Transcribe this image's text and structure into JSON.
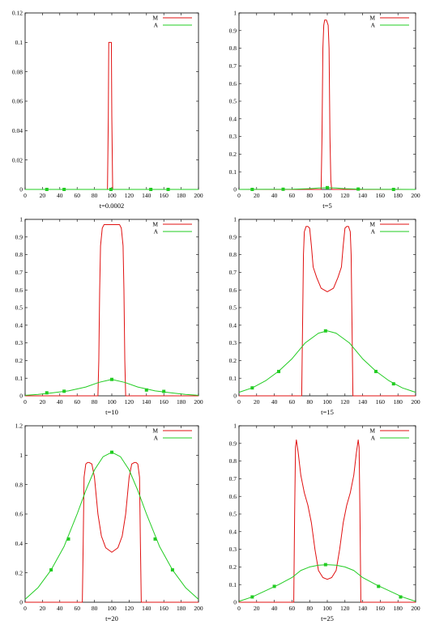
{
  "colors": {
    "M": "#e01010",
    "A": "#22cc22",
    "axis": "#000000"
  },
  "chart_data": [
    {
      "type": "line",
      "xlabel": "t=0.0002",
      "xlim": [
        0,
        200
      ],
      "ylim": [
        0,
        0.12
      ],
      "x_ticks": [
        0,
        20,
        40,
        60,
        80,
        100,
        120,
        140,
        160,
        180,
        200
      ],
      "y_ticks": [
        0,
        0.02,
        0.04,
        0.06,
        0.08,
        0.1,
        0.12
      ],
      "y_tick_labels": [
        "0",
        "0.02",
        "0.04",
        "0.06",
        "0.08",
        "0.1",
        "0.12"
      ],
      "legend": {
        "position": "top-right",
        "entries": [
          "M",
          "A"
        ]
      },
      "series": [
        {
          "name": "M",
          "x": [
            0,
            95,
            96,
            96.5,
            99.5,
            100,
            101,
            200
          ],
          "y": [
            0,
            0,
            0.05,
            0.1,
            0.1,
            0.05,
            0,
            0
          ]
        },
        {
          "name": "A",
          "x": [
            0,
            200
          ],
          "y": [
            0,
            0
          ],
          "markers_x": [
            25,
            45,
            99,
            145,
            165
          ],
          "markers_y": [
            0,
            0,
            0,
            0,
            0
          ]
        }
      ]
    },
    {
      "type": "line",
      "xlabel": "t=5",
      "xlim": [
        0,
        200
      ],
      "ylim": [
        0,
        1
      ],
      "x_ticks": [
        0,
        20,
        40,
        60,
        80,
        100,
        120,
        140,
        160,
        180,
        200
      ],
      "y_ticks": [
        0,
        0.1,
        0.2,
        0.3,
        0.4,
        0.5,
        0.6,
        0.7,
        0.8,
        0.9,
        1
      ],
      "y_tick_labels": [
        "0",
        "0.1",
        "0.2",
        "0.3",
        "0.4",
        "0.5",
        "0.6",
        "0.7",
        "0.8",
        "0.9",
        "1"
      ],
      "legend": {
        "position": "top-right",
        "entries": [
          "M",
          "A"
        ]
      },
      "series": [
        {
          "name": "M",
          "x": [
            0,
            93,
            94,
            95,
            96,
            97,
            99,
            101,
            102,
            103,
            104,
            105,
            200
          ],
          "y": [
            0,
            0,
            0.3,
            0.8,
            0.93,
            0.96,
            0.96,
            0.93,
            0.8,
            0.3,
            0.05,
            0,
            0
          ]
        },
        {
          "name": "A",
          "x": [
            0,
            60,
            80,
            90,
            100,
            110,
            120,
            140,
            200
          ],
          "y": [
            0,
            0.001,
            0.004,
            0.008,
            0.01,
            0.008,
            0.004,
            0.001,
            0
          ],
          "markers_x": [
            15,
            50,
            100,
            135,
            175
          ],
          "markers_y": [
            0,
            0.001,
            0.01,
            0.002,
            0
          ]
        }
      ]
    },
    {
      "type": "line",
      "xlabel": "t=10",
      "xlim": [
        0,
        200
      ],
      "ylim": [
        0,
        1
      ],
      "x_ticks": [
        0,
        20,
        40,
        60,
        80,
        100,
        120,
        140,
        160,
        180,
        200
      ],
      "y_ticks": [
        0,
        0.1,
        0.2,
        0.3,
        0.4,
        0.5,
        0.6,
        0.7,
        0.8,
        0.9,
        1
      ],
      "y_tick_labels": [
        "0",
        "0.1",
        "0.2",
        "0.3",
        "0.4",
        "0.5",
        "0.6",
        "0.7",
        "0.8",
        "0.9",
        "1"
      ],
      "legend": {
        "position": "top-right",
        "entries": [
          "M",
          "A"
        ]
      },
      "series": [
        {
          "name": "M",
          "x": [
            0,
            84,
            85,
            86,
            87,
            89,
            91,
            100,
            109,
            111,
            113,
            114,
            115,
            116,
            200
          ],
          "y": [
            0,
            0,
            0.2,
            0.6,
            0.85,
            0.95,
            0.97,
            0.97,
            0.97,
            0.95,
            0.85,
            0.6,
            0.2,
            0,
            0
          ]
        },
        {
          "name": "A",
          "x": [
            0,
            15,
            30,
            50,
            70,
            85,
            100,
            115,
            130,
            150,
            170,
            185,
            200
          ],
          "y": [
            0.003,
            0.008,
            0.016,
            0.028,
            0.05,
            0.076,
            0.093,
            0.076,
            0.05,
            0.028,
            0.016,
            0.008,
            0.003
          ],
          "markers_x": [
            25,
            45,
            100,
            140,
            160
          ],
          "markers_y": [
            0.017,
            0.026,
            0.093,
            0.033,
            0.025
          ]
        }
      ]
    },
    {
      "type": "line",
      "xlabel": "t=15",
      "xlim": [
        0,
        200
      ],
      "ylim": [
        0,
        1
      ],
      "x_ticks": [
        0,
        20,
        40,
        60,
        80,
        100,
        120,
        140,
        160,
        180,
        200
      ],
      "y_ticks": [
        0,
        0.1,
        0.2,
        0.3,
        0.4,
        0.5,
        0.6,
        0.7,
        0.8,
        0.9,
        1
      ],
      "y_tick_labels": [
        "0",
        "0.1",
        "0.2",
        "0.3",
        "0.4",
        "0.5",
        "0.6",
        "0.7",
        "0.8",
        "0.9",
        "1"
      ],
      "legend": {
        "position": "top-right",
        "entries": [
          "M",
          "A"
        ]
      },
      "series": [
        {
          "name": "M",
          "x": [
            0,
            71,
            72,
            73,
            74,
            76,
            78,
            80,
            82,
            84,
            88,
            93,
            100,
            107,
            112,
            116,
            118,
            120,
            122,
            124,
            126,
            127,
            128,
            129,
            200
          ],
          "y": [
            0,
            0,
            0.4,
            0.8,
            0.93,
            0.96,
            0.96,
            0.95,
            0.85,
            0.73,
            0.67,
            0.61,
            0.59,
            0.61,
            0.67,
            0.73,
            0.85,
            0.95,
            0.96,
            0.96,
            0.93,
            0.8,
            0.4,
            0,
            0
          ]
        },
        {
          "name": "A",
          "x": [
            0,
            15,
            30,
            45,
            60,
            75,
            90,
            100,
            110,
            125,
            140,
            155,
            170,
            185,
            200
          ],
          "y": [
            0.02,
            0.045,
            0.085,
            0.14,
            0.21,
            0.3,
            0.355,
            0.368,
            0.355,
            0.3,
            0.21,
            0.14,
            0.085,
            0.045,
            0.02
          ],
          "markers_x": [
            15,
            45,
            98,
            155,
            175
          ],
          "markers_y": [
            0.045,
            0.138,
            0.368,
            0.138,
            0.068
          ]
        }
      ]
    },
    {
      "type": "line",
      "xlabel": "t=20",
      "xlim": [
        0,
        200
      ],
      "ylim": [
        0,
        1.2
      ],
      "x_ticks": [
        0,
        20,
        40,
        60,
        80,
        100,
        120,
        140,
        160,
        180,
        200
      ],
      "y_ticks": [
        0,
        0.2,
        0.4,
        0.6,
        0.8,
        1,
        1.2
      ],
      "y_tick_labels": [
        "0",
        "0.2",
        "0.4",
        "0.6",
        "0.8",
        "1",
        "1.2"
      ],
      "legend": {
        "position": "top-right",
        "entries": [
          "M",
          "A"
        ]
      },
      "series": [
        {
          "name": "M",
          "x": [
            0,
            66,
            67,
            68,
            70,
            72,
            74,
            77,
            80,
            84,
            88,
            93,
            100,
            107,
            112,
            116,
            120,
            123,
            126,
            128,
            130,
            132,
            133,
            134,
            200
          ],
          "y": [
            0,
            0,
            0.4,
            0.85,
            0.94,
            0.95,
            0.95,
            0.94,
            0.85,
            0.6,
            0.45,
            0.37,
            0.34,
            0.37,
            0.45,
            0.6,
            0.85,
            0.94,
            0.95,
            0.95,
            0.94,
            0.85,
            0.4,
            0,
            0
          ]
        },
        {
          "name": "A",
          "x": [
            0,
            15,
            30,
            45,
            60,
            70,
            80,
            90,
            100,
            110,
            120,
            130,
            140,
            155,
            170,
            185,
            200
          ],
          "y": [
            0.02,
            0.1,
            0.22,
            0.38,
            0.6,
            0.76,
            0.9,
            0.99,
            1.02,
            0.99,
            0.9,
            0.76,
            0.6,
            0.38,
            0.22,
            0.1,
            0.02
          ],
          "markers_x": [
            30,
            50,
            100,
            150,
            170
          ],
          "markers_y": [
            0.22,
            0.43,
            1.02,
            0.43,
            0.22
          ]
        }
      ]
    },
    {
      "type": "line",
      "xlabel": "t=25",
      "xlim": [
        0,
        200
      ],
      "ylim": [
        0,
        1
      ],
      "x_ticks": [
        0,
        20,
        40,
        60,
        80,
        100,
        120,
        140,
        160,
        180,
        200
      ],
      "y_ticks": [
        0,
        0.1,
        0.2,
        0.3,
        0.4,
        0.5,
        0.6,
        0.7,
        0.8,
        0.9,
        1
      ],
      "y_tick_labels": [
        "0",
        "0.1",
        "0.2",
        "0.3",
        "0.4",
        "0.5",
        "0.6",
        "0.7",
        "0.8",
        "0.9",
        "1"
      ],
      "legend": {
        "position": "top-right",
        "entries": [
          "M",
          "A"
        ]
      },
      "series": [
        {
          "name": "M",
          "x": [
            0,
            62,
            63,
            64,
            65,
            67,
            70,
            74,
            78,
            82,
            86,
            90,
            95,
            100,
            105,
            110,
            114,
            118,
            122,
            126,
            130,
            133,
            135,
            136,
            137,
            138,
            200
          ],
          "y": [
            0,
            0,
            0.5,
            0.88,
            0.92,
            0.85,
            0.72,
            0.62,
            0.55,
            0.45,
            0.3,
            0.18,
            0.14,
            0.13,
            0.14,
            0.18,
            0.3,
            0.45,
            0.55,
            0.62,
            0.72,
            0.85,
            0.92,
            0.88,
            0.5,
            0,
            0
          ]
        },
        {
          "name": "A",
          "x": [
            0,
            15,
            30,
            45,
            60,
            70,
            80,
            90,
            100,
            110,
            120,
            130,
            140,
            155,
            170,
            185,
            200
          ],
          "y": [
            0.005,
            0.03,
            0.065,
            0.1,
            0.14,
            0.18,
            0.2,
            0.21,
            0.213,
            0.21,
            0.2,
            0.18,
            0.14,
            0.1,
            0.065,
            0.03,
            0.005
          ],
          "markers_x": [
            15,
            40,
            98,
            158,
            183
          ],
          "markers_y": [
            0.03,
            0.09,
            0.213,
            0.09,
            0.03
          ]
        }
      ]
    }
  ]
}
